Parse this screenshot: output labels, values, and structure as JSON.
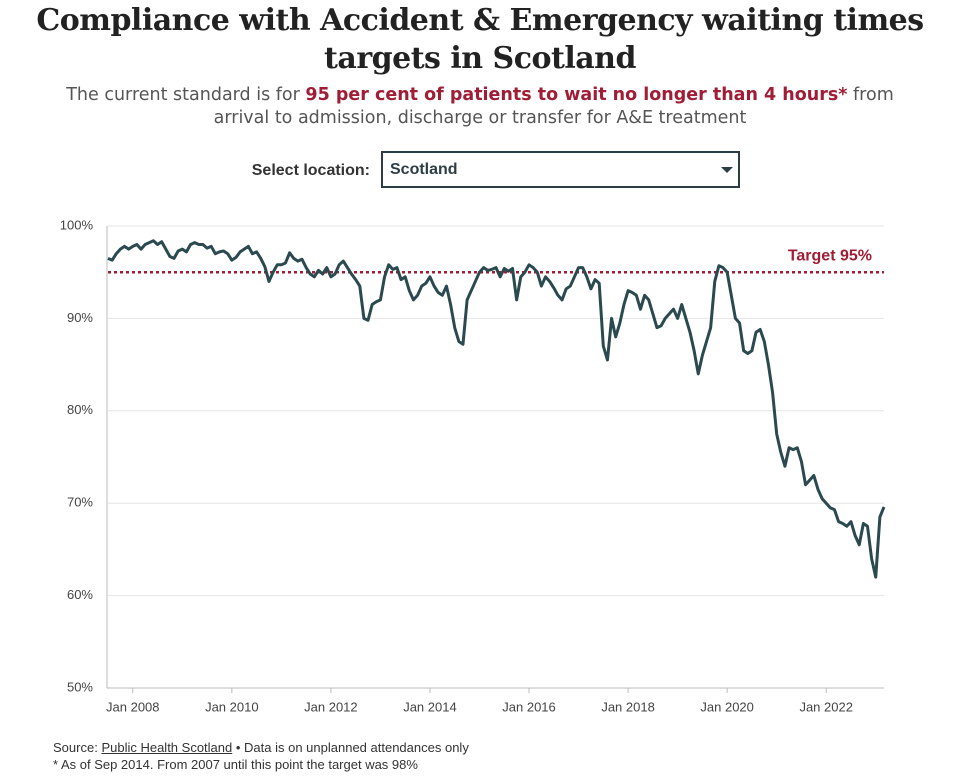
{
  "chart_data": {
    "type": "line",
    "title": "Compliance with Accident & Emergency waiting times targets in Scotland",
    "subtitle_parts": [
      "The current standard is for",
      "95 per cent of patients to wait no longer than 4 hours*",
      "from arrival to admission, discharge or transfer for A&E treatment"
    ],
    "control": {
      "label": "Select location:",
      "value": "Scotland"
    },
    "target": {
      "value": 95,
      "label": "Target 95%",
      "color": "#a01d35"
    },
    "x": [
      "2007-07",
      "2007-08",
      "2007-09",
      "2007-10",
      "2007-11",
      "2007-12",
      "2008-01",
      "2008-02",
      "2008-03",
      "2008-04",
      "2008-05",
      "2008-06",
      "2008-07",
      "2008-08",
      "2008-09",
      "2008-10",
      "2008-11",
      "2008-12",
      "2009-01",
      "2009-02",
      "2009-03",
      "2009-04",
      "2009-05",
      "2009-06",
      "2009-07",
      "2009-08",
      "2009-09",
      "2009-10",
      "2009-11",
      "2009-12",
      "2010-01",
      "2010-02",
      "2010-03",
      "2010-04",
      "2010-05",
      "2010-06",
      "2010-07",
      "2010-08",
      "2010-09",
      "2010-10",
      "2010-11",
      "2010-12",
      "2011-01",
      "2011-02",
      "2011-03",
      "2011-04",
      "2011-05",
      "2011-06",
      "2011-07",
      "2011-08",
      "2011-09",
      "2011-10",
      "2011-11",
      "2011-12",
      "2012-01",
      "2012-02",
      "2012-03",
      "2012-04",
      "2012-05",
      "2012-06",
      "2012-07",
      "2012-08",
      "2012-09",
      "2012-10",
      "2012-11",
      "2012-12",
      "2013-01",
      "2013-02",
      "2013-03",
      "2013-04",
      "2013-05",
      "2013-06",
      "2013-07",
      "2013-08",
      "2013-09",
      "2013-10",
      "2013-11",
      "2013-12",
      "2014-01",
      "2014-02",
      "2014-03",
      "2014-04",
      "2014-05",
      "2014-06",
      "2014-07",
      "2014-08",
      "2014-09",
      "2014-10",
      "2014-11",
      "2014-12",
      "2015-01",
      "2015-02",
      "2015-03",
      "2015-04",
      "2015-05",
      "2015-06",
      "2015-07",
      "2015-08",
      "2015-09",
      "2015-10",
      "2015-11",
      "2015-12",
      "2016-01",
      "2016-02",
      "2016-03",
      "2016-04",
      "2016-05",
      "2016-06",
      "2016-07",
      "2016-08",
      "2016-09",
      "2016-10",
      "2016-11",
      "2016-12",
      "2017-01",
      "2017-02",
      "2017-03",
      "2017-04",
      "2017-05",
      "2017-06",
      "2017-07",
      "2017-08",
      "2017-09",
      "2017-10",
      "2017-11",
      "2017-12",
      "2018-01",
      "2018-02",
      "2018-03",
      "2018-04",
      "2018-05",
      "2018-06",
      "2018-07",
      "2018-08",
      "2018-09",
      "2018-10",
      "2018-11",
      "2018-12",
      "2019-01",
      "2019-02",
      "2019-03",
      "2019-04",
      "2019-05",
      "2019-06",
      "2019-07",
      "2019-08",
      "2019-09",
      "2019-10",
      "2019-11",
      "2019-12",
      "2020-01",
      "2020-02",
      "2020-03",
      "2020-04",
      "2020-05",
      "2020-06",
      "2020-07",
      "2020-08",
      "2020-09",
      "2020-10",
      "2020-11",
      "2020-12",
      "2021-01",
      "2021-02",
      "2021-03",
      "2021-04",
      "2021-05",
      "2021-06",
      "2021-07",
      "2021-08",
      "2021-09",
      "2021-10",
      "2021-11",
      "2021-12",
      "2022-01",
      "2022-02",
      "2022-03",
      "2022-04",
      "2022-05",
      "2022-06",
      "2022-07",
      "2022-08",
      "2022-09",
      "2022-10",
      "2022-11",
      "2022-12",
      "2023-01",
      "2023-02",
      "2023-03"
    ],
    "series": [
      {
        "color": "#2b4a50",
        "values": [
          96.5,
          96.3,
          97,
          97.5,
          97.8,
          97.5,
          97.8,
          98,
          97.5,
          98,
          98.2,
          98.4,
          98,
          98.3,
          97.5,
          96.7,
          96.5,
          97.3,
          97.5,
          97.2,
          98,
          98.2,
          98,
          98,
          97.6,
          97.8,
          97,
          97.2,
          97.3,
          97,
          96.3,
          96.6,
          97.2,
          97.5,
          97.8,
          97,
          97.2,
          96.5,
          95.6,
          94,
          95,
          95.8,
          95.8,
          96,
          97.1,
          96.5,
          96.2,
          96.4,
          95.5,
          94.8,
          94.5,
          95.2,
          94.8,
          95.5,
          94.5,
          94.8,
          95.8,
          96.2,
          95.5,
          94.8,
          94.2,
          93.5,
          90,
          89.8,
          91.5,
          91.8,
          92,
          94.5,
          95.8,
          95.3,
          95.5,
          94.2,
          94.5,
          93,
          92,
          92.5,
          93.5,
          93.8,
          94.5,
          93.5,
          92.8,
          92.5,
          93.5,
          91.5,
          89,
          87.5,
          87.2,
          92,
          93,
          94,
          95,
          95.5,
          95.2,
          95.3,
          95.5,
          94.5,
          95.4,
          95.1,
          95.4,
          92,
          94.5,
          95,
          95.8,
          95.5,
          95,
          93.5,
          94.5,
          94,
          93.3,
          92.5,
          92,
          93.2,
          93.5,
          94.5,
          95.5,
          95.5,
          94.5,
          93.2,
          94.2,
          93.8,
          87,
          85.5,
          90,
          88,
          89.5,
          91.5,
          93,
          92.8,
          92.5,
          91,
          92.5,
          92,
          90.5,
          89,
          89.2,
          90,
          90.5,
          91,
          90,
          91.5,
          90,
          88.5,
          86.5,
          84,
          86,
          87.5,
          89,
          94,
          95.7,
          95.5,
          95,
          92.5,
          90,
          89.5,
          86.5,
          86.2,
          86.5,
          88.5,
          88.8,
          87.5,
          85,
          82,
          77.5,
          75.5,
          74,
          76,
          75.8,
          76,
          74.5,
          72,
          72.5,
          73,
          71.5,
          70.5,
          70,
          69.5,
          69.3,
          68,
          67.8,
          67.5,
          68,
          66.5,
          65.5,
          67.8,
          67.5,
          64,
          62,
          68.5,
          69.6
        ]
      }
    ],
    "xlim": [
      "2007-07",
      "2023-03"
    ],
    "xticks": [
      {
        "value": "2008-01",
        "label": "Jan 2008"
      },
      {
        "value": "2010-01",
        "label": "Jan 2010"
      },
      {
        "value": "2012-01",
        "label": "Jan 2012"
      },
      {
        "value": "2014-01",
        "label": "Jan 2014"
      },
      {
        "value": "2016-01",
        "label": "Jan 2016"
      },
      {
        "value": "2018-01",
        "label": "Jan 2018"
      },
      {
        "value": "2020-01",
        "label": "Jan 2020"
      },
      {
        "value": "2022-01",
        "label": "Jan 2022"
      }
    ],
    "ylim": [
      50,
      100
    ],
    "yticks": [
      {
        "value": 50,
        "label": "50%"
      },
      {
        "value": 60,
        "label": "60%"
      },
      {
        "value": 70,
        "label": "70%"
      },
      {
        "value": 80,
        "label": "80%"
      },
      {
        "value": 90,
        "label": "90%"
      },
      {
        "value": 100,
        "label": "100%"
      }
    ],
    "grid": true,
    "source": {
      "prefix": "Source:",
      "link": "Public Health Scotland",
      "suffix": "• Data is on unplanned attendances only"
    },
    "footnote": "* As of Sep 2014. From 2007 until this point the target was 98%"
  }
}
